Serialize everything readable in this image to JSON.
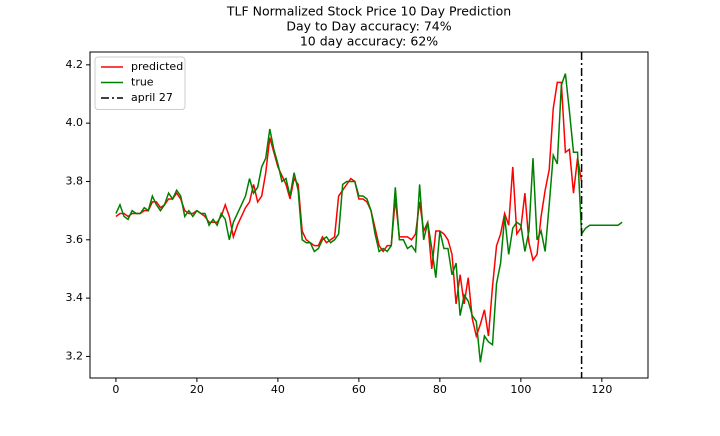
{
  "chart_data": {
    "type": "line",
    "title": "TLF Normalized Stock Price 10 Day Prediction",
    "subtitle": [
      "Day to Day accuracy: 74%",
      "10 day accuracy: 62%"
    ],
    "x": [
      0,
      1,
      2,
      3,
      4,
      5,
      6,
      7,
      8,
      9,
      10,
      11,
      12,
      13,
      14,
      15,
      16,
      17,
      18,
      19,
      20,
      21,
      22,
      23,
      24,
      25,
      26,
      27,
      28,
      29,
      30,
      31,
      32,
      33,
      34,
      35,
      36,
      37,
      38,
      39,
      40,
      41,
      42,
      43,
      44,
      45,
      46,
      47,
      48,
      49,
      50,
      51,
      52,
      53,
      54,
      55,
      56,
      57,
      58,
      59,
      60,
      61,
      62,
      63,
      64,
      65,
      66,
      67,
      68,
      69,
      70,
      71,
      72,
      73,
      74,
      75,
      76,
      77,
      78,
      79,
      80,
      81,
      82,
      83,
      84,
      85,
      86,
      87,
      88,
      89,
      90,
      91,
      92,
      93,
      94,
      95,
      96,
      97,
      98,
      99,
      100,
      101,
      102,
      103,
      104,
      105,
      106,
      107,
      108,
      109,
      110,
      111,
      112,
      113,
      114,
      115,
      116,
      117,
      118,
      119,
      120,
      121,
      122,
      123,
      124,
      125
    ],
    "series": [
      {
        "name": "predicted",
        "color": "#ff0000",
        "values": [
          3.68,
          3.69,
          3.69,
          3.68,
          3.69,
          3.69,
          3.69,
          3.7,
          3.7,
          3.73,
          3.73,
          3.71,
          3.72,
          3.74,
          3.74,
          3.76,
          3.74,
          3.7,
          3.69,
          3.69,
          3.7,
          3.69,
          3.68,
          3.66,
          3.66,
          3.66,
          3.68,
          3.72,
          3.68,
          3.61,
          3.65,
          3.68,
          3.71,
          3.73,
          3.79,
          3.73,
          3.75,
          3.83,
          3.95,
          3.9,
          3.85,
          3.82,
          3.79,
          3.74,
          3.81,
          3.79,
          3.63,
          3.6,
          3.59,
          3.58,
          3.58,
          3.61,
          3.59,
          3.6,
          3.61,
          3.75,
          3.77,
          3.79,
          3.81,
          3.8,
          3.74,
          3.74,
          3.73,
          3.7,
          3.64,
          3.58,
          3.56,
          3.58,
          3.58,
          3.74,
          3.61,
          3.61,
          3.61,
          3.6,
          3.62,
          3.73,
          3.63,
          3.66,
          3.5,
          3.63,
          3.63,
          3.62,
          3.6,
          3.55,
          3.38,
          3.48,
          3.38,
          3.47,
          3.33,
          3.27,
          3.31,
          3.36,
          3.27,
          3.44,
          3.58,
          3.62,
          3.69,
          3.65,
          3.85,
          3.62,
          3.64,
          3.76,
          3.59,
          3.53,
          3.55,
          3.68,
          3.77,
          3.84,
          4.05,
          4.14,
          4.14,
          3.9,
          3.91,
          3.76,
          3.88,
          3.8,
          null,
          null,
          null,
          null,
          null,
          null,
          null,
          null,
          null,
          null
        ]
      },
      {
        "name": "true",
        "color": "#008000",
        "values": [
          3.69,
          3.72,
          3.68,
          3.67,
          3.7,
          3.69,
          3.69,
          3.71,
          3.7,
          3.75,
          3.72,
          3.7,
          3.72,
          3.76,
          3.74,
          3.77,
          3.75,
          3.68,
          3.7,
          3.68,
          3.7,
          3.69,
          3.69,
          3.65,
          3.67,
          3.65,
          3.69,
          3.67,
          3.6,
          3.66,
          3.69,
          3.72,
          3.75,
          3.81,
          3.76,
          3.78,
          3.85,
          3.88,
          3.98,
          3.91,
          3.86,
          3.8,
          3.81,
          3.75,
          3.83,
          3.77,
          3.6,
          3.59,
          3.59,
          3.56,
          3.57,
          3.6,
          3.61,
          3.59,
          3.6,
          3.62,
          3.79,
          3.8,
          3.8,
          3.8,
          3.75,
          3.75,
          3.74,
          3.7,
          3.62,
          3.56,
          3.57,
          3.56,
          3.58,
          3.78,
          3.6,
          3.6,
          3.57,
          3.58,
          3.56,
          3.79,
          3.6,
          3.66,
          3.57,
          3.47,
          3.63,
          3.57,
          3.57,
          3.48,
          3.52,
          3.34,
          3.41,
          3.39,
          3.34,
          3.32,
          3.18,
          3.27,
          3.25,
          3.24,
          3.45,
          3.52,
          3.68,
          3.55,
          3.64,
          3.66,
          3.65,
          3.56,
          3.63,
          3.88,
          3.6,
          3.63,
          3.56,
          3.72,
          3.89,
          3.86,
          4.13,
          4.17,
          4.04,
          3.9,
          3.9,
          3.62,
          3.64,
          3.65,
          3.65,
          3.65,
          3.65,
          3.65,
          3.65,
          3.65,
          3.65,
          3.66
        ]
      }
    ],
    "vlines": [
      {
        "name": "april 27",
        "x": 115,
        "color": "#000000"
      }
    ],
    "xlim": [
      -6.4,
      131.4
    ],
    "ylim": [
      3.126,
      4.244
    ],
    "xticks": [
      0,
      20,
      40,
      60,
      80,
      100,
      120
    ],
    "yticks": [
      3.2,
      3.4,
      3.6,
      3.8,
      {
        "value": 4,
        "label": "4.0"
      },
      4.2
    ],
    "grid": false,
    "legend": "upper left"
  }
}
